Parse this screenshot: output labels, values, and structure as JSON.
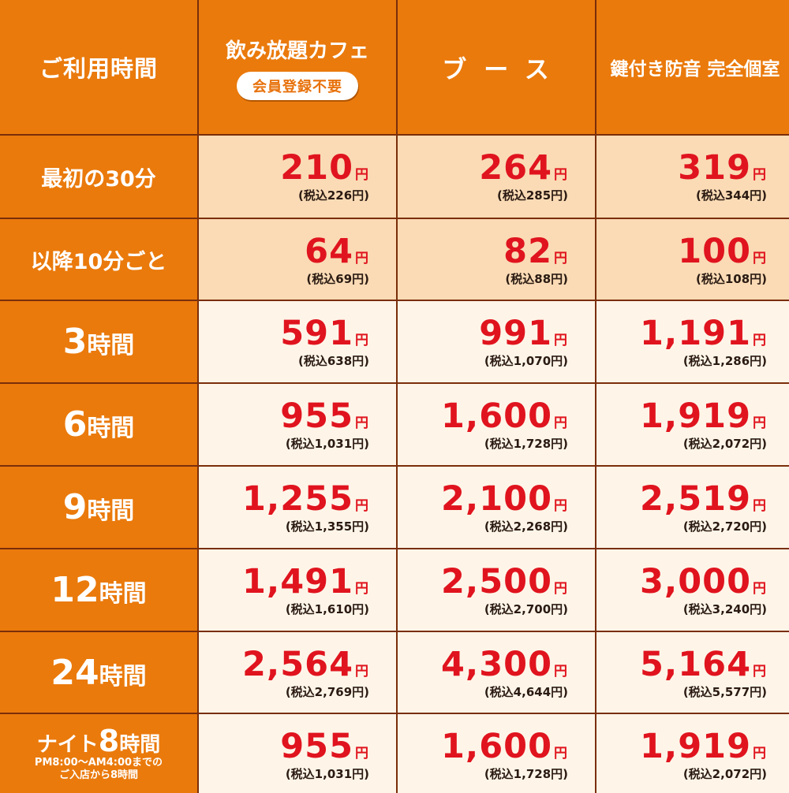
{
  "header": {
    "time_label": "ご利用時間",
    "cafe_title": "飲み放題カフェ",
    "cafe_badge": "会員登録不要",
    "booth": "ブース",
    "private": "鍵付き防音 完全個室"
  },
  "rows": [
    {
      "label": "最初の30分",
      "style": "small",
      "prices": [
        {
          "amount": "210",
          "yen": "円",
          "tax": "(税込226円)"
        },
        {
          "amount": "264",
          "yen": "円",
          "tax": "(税込285円)"
        },
        {
          "amount": "319",
          "yen": "円",
          "tax": "(税込344円)"
        }
      ]
    },
    {
      "label": "以降10分ごと",
      "style": "small",
      "prices": [
        {
          "amount": "64",
          "yen": "円",
          "tax": "(税込69円)"
        },
        {
          "amount": "82",
          "yen": "円",
          "tax": "(税込88円)"
        },
        {
          "amount": "100",
          "yen": "円",
          "tax": "(税込108円)"
        }
      ]
    },
    {
      "label_num": "3",
      "label_unit": "時間",
      "prices": [
        {
          "amount": "591",
          "yen": "円",
          "tax": "(税込638円)"
        },
        {
          "amount": "991",
          "yen": "円",
          "tax": "(税込1,070円)"
        },
        {
          "amount": "1,191",
          "yen": "円",
          "tax": "(税込1,286円)"
        }
      ]
    },
    {
      "label_num": "6",
      "label_unit": "時間",
      "prices": [
        {
          "amount": "955",
          "yen": "円",
          "tax": "(税込1,031円)"
        },
        {
          "amount": "1,600",
          "yen": "円",
          "tax": "(税込1,728円)"
        },
        {
          "amount": "1,919",
          "yen": "円",
          "tax": "(税込2,072円)"
        }
      ]
    },
    {
      "label_num": "9",
      "label_unit": "時間",
      "prices": [
        {
          "amount": "1,255",
          "yen": "円",
          "tax": "(税込1,355円)"
        },
        {
          "amount": "2,100",
          "yen": "円",
          "tax": "(税込2,268円)"
        },
        {
          "amount": "2,519",
          "yen": "円",
          "tax": "(税込2,720円)"
        }
      ]
    },
    {
      "label_num": "12",
      "label_unit": "時間",
      "prices": [
        {
          "amount": "1,491",
          "yen": "円",
          "tax": "(税込1,610円)"
        },
        {
          "amount": "2,500",
          "yen": "円",
          "tax": "(税込2,700円)"
        },
        {
          "amount": "3,000",
          "yen": "円",
          "tax": "(税込3,240円)"
        }
      ]
    },
    {
      "label_num": "24",
      "label_unit": "時間",
      "prices": [
        {
          "amount": "2,564",
          "yen": "円",
          "tax": "(税込2,769円)"
        },
        {
          "amount": "4,300",
          "yen": "円",
          "tax": "(税込4,644円)"
        },
        {
          "amount": "5,164",
          "yen": "円",
          "tax": "(税込5,577円)"
        }
      ]
    },
    {
      "label_pre": "ナイト",
      "label_num": "8",
      "label_unit": "時間",
      "label_sub1": "PM8:00～AM4:00までの",
      "label_sub2": "ご入店から8時間",
      "prices": [
        {
          "amount": "955",
          "yen": "円",
          "tax": "(税込1,031円)"
        },
        {
          "amount": "1,600",
          "yen": "円",
          "tax": "(税込1,728円)"
        },
        {
          "amount": "1,919",
          "yen": "円",
          "tax": "(税込2,072円)"
        }
      ]
    }
  ],
  "colors": {
    "header_bg": "#ea7a0c",
    "price": "#e0141e",
    "peach": "#fadbb5",
    "cream": "#fef5e8",
    "border": "#7a2e0a"
  }
}
